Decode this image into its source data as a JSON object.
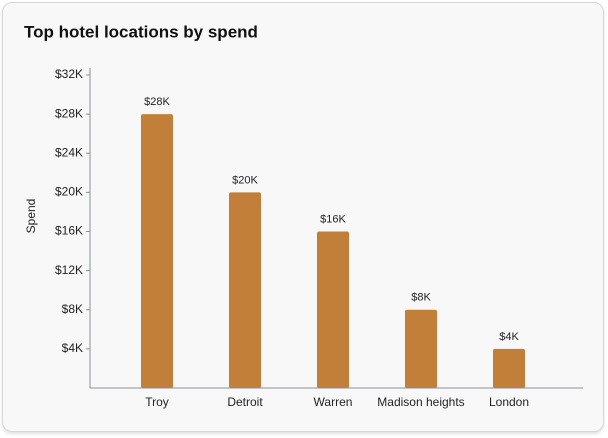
{
  "chart_data": {
    "type": "bar",
    "title": "Top hotel locations by spend",
    "y_label": "Spend",
    "categories": [
      "Troy",
      "Detroit",
      "Warren",
      "Madison heights",
      "London"
    ],
    "values": [
      28000,
      20000,
      16000,
      8000,
      4000
    ],
    "value_labels": [
      "$28K",
      "$20K",
      "$16K",
      "$8K",
      "$4K"
    ],
    "color": "#c17f3a",
    "ylim": [
      0,
      32000
    ],
    "yticks": [
      {
        "value": 4000,
        "label": "$4K"
      },
      {
        "value": 8000,
        "label": "$8K"
      },
      {
        "value": 12000,
        "label": "$12K"
      },
      {
        "value": 16000,
        "label": "$16K"
      },
      {
        "value": 20000,
        "label": "$20K"
      },
      {
        "value": 24000,
        "label": "$24K"
      },
      {
        "value": 28000,
        "label": "$28K"
      },
      {
        "value": 32000,
        "label": "$32K"
      }
    ],
    "grid": false
  }
}
